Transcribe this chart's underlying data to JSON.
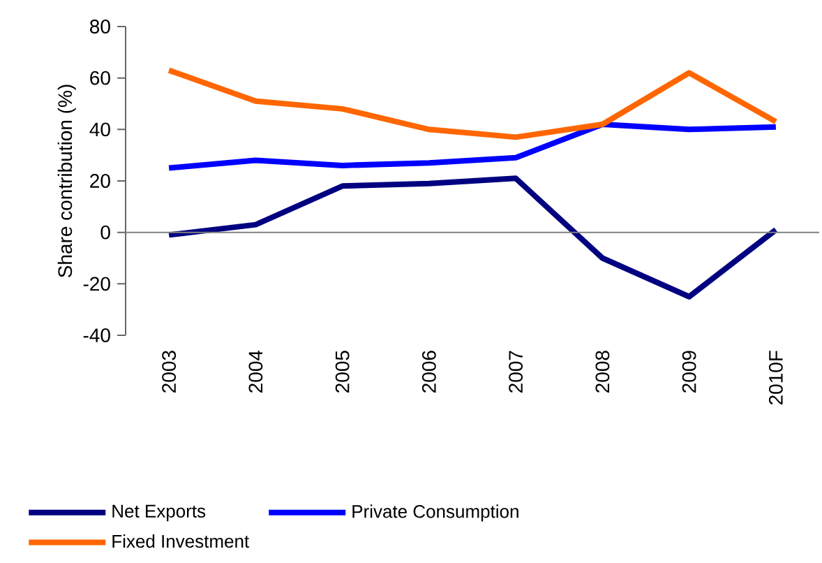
{
  "chart_data": {
    "type": "line",
    "ylabel": "Share contribution (%)",
    "categories": [
      "2003",
      "2004",
      "2005",
      "2006",
      "2007",
      "2008",
      "2009",
      "2010F"
    ],
    "series": [
      {
        "name": "Net Exports",
        "color": "#000080",
        "values": [
          -1,
          3,
          18,
          19,
          21,
          -10,
          -25,
          1
        ]
      },
      {
        "name": "Private Consumption",
        "color": "#0000ff",
        "values": [
          25,
          28,
          26,
          27,
          29,
          42,
          40,
          41
        ]
      },
      {
        "name": "Fixed Investment",
        "color": "#ff6600",
        "values": [
          63,
          51,
          48,
          40,
          37,
          42,
          62,
          43
        ]
      }
    ],
    "ylim": [
      -40,
      80
    ],
    "yticks": [
      -40,
      -20,
      0,
      20,
      40,
      60,
      80
    ],
    "ref_lines": [
      {
        "axis": "y",
        "value": 0,
        "color": "#808080",
        "line_style": "solid"
      }
    ],
    "legend": "bottom",
    "grid": false,
    "marker": "none",
    "line_style": "solid"
  }
}
